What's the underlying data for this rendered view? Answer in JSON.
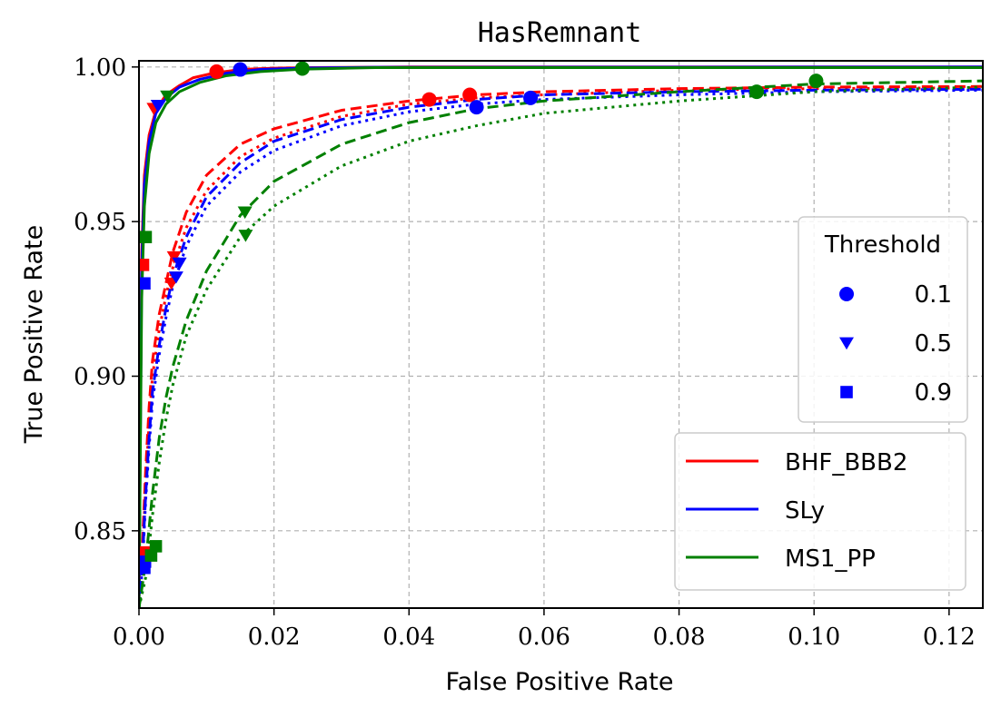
{
  "chart_data": {
    "type": "line",
    "title": "HasRemnant",
    "xlabel": "False Positive Rate",
    "ylabel": "True Positive Rate",
    "xlim": [
      0.0,
      0.125
    ],
    "ylim": [
      0.825,
      1.002
    ],
    "xticks": [
      0.0,
      0.02,
      0.04,
      0.06,
      0.08,
      0.1,
      0.12
    ],
    "xtick_labels": [
      "0.00",
      "0.02",
      "0.04",
      "0.06",
      "0.08",
      "0.10",
      "0.12"
    ],
    "yticks": [
      0.85,
      0.9,
      0.95,
      1.0
    ],
    "ytick_labels": [
      "0.85",
      "0.90",
      "0.95",
      "1.00"
    ],
    "grid": true,
    "grid_style": "dashed",
    "series_legend": {
      "placement": "bottom-right",
      "entries": [
        {
          "name": "BHF_BBB2",
          "color": "#ff0000"
        },
        {
          "name": "SLy",
          "color": "#0000ff"
        },
        {
          "name": "MS1_PP",
          "color": "#008000"
        }
      ]
    },
    "threshold_legend": {
      "title": "Threshold",
      "placement": "center-right",
      "entries": [
        {
          "label": "0.1",
          "marker": "circle"
        },
        {
          "label": "0.5",
          "marker": "triangle-down"
        },
        {
          "label": "0.9",
          "marker": "square"
        }
      ],
      "color": "#0000ff"
    },
    "series": [
      {
        "eos": "BHF_BBB2",
        "color": "#ff0000",
        "dash": "solid",
        "x": [
          0.0,
          0.0004,
          0.0008,
          0.0015,
          0.0025,
          0.004,
          0.006,
          0.008,
          0.011,
          0.015,
          0.02,
          0.025,
          0.04,
          0.125
        ],
        "y": [
          0.825,
          0.94,
          0.965,
          0.978,
          0.986,
          0.991,
          0.994,
          0.9965,
          0.998,
          0.9992,
          0.9996,
          0.9998,
          1.0,
          1.0
        ],
        "markers": [
          {
            "marker": "circle",
            "x": 0.0115,
            "y": 0.9985
          },
          {
            "marker": "triangle-down",
            "x": 0.0022,
            "y": 0.9865
          },
          {
            "marker": "square",
            "x": 0.0006,
            "y": 0.936
          }
        ]
      },
      {
        "eos": "SLy",
        "color": "#0000ff",
        "dash": "solid",
        "x": [
          0.0,
          0.0004,
          0.0008,
          0.0015,
          0.0025,
          0.004,
          0.006,
          0.009,
          0.013,
          0.018,
          0.025,
          0.035,
          0.125
        ],
        "y": [
          0.825,
          0.935,
          0.962,
          0.976,
          0.985,
          0.99,
          0.9935,
          0.996,
          0.998,
          0.9992,
          0.9997,
          0.9999,
          1.0
        ],
        "markers": [
          {
            "marker": "circle",
            "x": 0.015,
            "y": 0.9992
          },
          {
            "marker": "triangle-down",
            "x": 0.0028,
            "y": 0.9875
          },
          {
            "marker": "square",
            "x": 0.0008,
            "y": 0.93
          }
        ]
      },
      {
        "eos": "MS1_PP",
        "color": "#008000",
        "dash": "solid",
        "x": [
          0.0,
          0.0004,
          0.0008,
          0.0015,
          0.0025,
          0.004,
          0.006,
          0.009,
          0.013,
          0.018,
          0.024,
          0.035,
          0.125
        ],
        "y": [
          0.825,
          0.925,
          0.955,
          0.972,
          0.982,
          0.988,
          0.992,
          0.995,
          0.9972,
          0.9985,
          0.9993,
          0.9998,
          0.9998
        ],
        "markers": [
          {
            "marker": "circle",
            "x": 0.0242,
            "y": 0.9995
          },
          {
            "marker": "triangle-down",
            "x": 0.0042,
            "y": 0.9905
          },
          {
            "marker": "square",
            "x": 0.001,
            "y": 0.945
          }
        ]
      },
      {
        "eos": "BHF_BBB2",
        "color": "#ff0000",
        "dash": "dashed",
        "x": [
          0.0,
          0.0005,
          0.001,
          0.0015,
          0.002,
          0.003,
          0.004,
          0.005,
          0.007,
          0.01,
          0.015,
          0.02,
          0.03,
          0.04,
          0.05,
          0.06,
          0.08,
          0.1,
          0.125
        ],
        "y": [
          0.825,
          0.845,
          0.87,
          0.89,
          0.905,
          0.92,
          0.93,
          0.94,
          0.953,
          0.965,
          0.975,
          0.98,
          0.986,
          0.989,
          0.991,
          0.992,
          0.993,
          0.9935,
          0.9937
        ],
        "markers": [
          {
            "marker": "circle",
            "x": 0.049,
            "y": 0.991
          },
          {
            "marker": "triangle-down",
            "x": 0.0052,
            "y": 0.9385
          },
          {
            "marker": "square",
            "x": 0.0008,
            "y": 0.843
          }
        ]
      },
      {
        "eos": "BHF_BBB2",
        "color": "#ff0000",
        "dash": "dotted",
        "x": [
          0.0,
          0.0005,
          0.001,
          0.0015,
          0.002,
          0.003,
          0.004,
          0.005,
          0.007,
          0.01,
          0.015,
          0.02,
          0.03,
          0.04,
          0.05,
          0.06,
          0.08,
          0.1,
          0.125
        ],
        "y": [
          0.825,
          0.84,
          0.865,
          0.885,
          0.9,
          0.915,
          0.926,
          0.935,
          0.948,
          0.96,
          0.971,
          0.977,
          0.984,
          0.988,
          0.99,
          0.991,
          0.9925,
          0.993,
          0.9933
        ],
        "markers": [
          {
            "marker": "circle",
            "x": 0.043,
            "y": 0.9895
          },
          {
            "marker": "triangle-down",
            "x": 0.0048,
            "y": 0.93
          },
          {
            "marker": "square",
            "x": 0.0007,
            "y": 0.84
          }
        ]
      },
      {
        "eos": "SLy",
        "color": "#0000ff",
        "dash": "dashed",
        "x": [
          0.0,
          0.0005,
          0.001,
          0.0015,
          0.002,
          0.003,
          0.004,
          0.005,
          0.007,
          0.01,
          0.015,
          0.02,
          0.03,
          0.04,
          0.05,
          0.06,
          0.08,
          0.1,
          0.125
        ],
        "y": [
          0.825,
          0.84,
          0.862,
          0.88,
          0.895,
          0.91,
          0.922,
          0.932,
          0.945,
          0.958,
          0.969,
          0.976,
          0.983,
          0.987,
          0.9895,
          0.991,
          0.992,
          0.9925,
          0.9928
        ],
        "markers": [
          {
            "marker": "circle",
            "x": 0.058,
            "y": 0.99
          },
          {
            "marker": "triangle-down",
            "x": 0.006,
            "y": 0.9365
          },
          {
            "marker": "square",
            "x": 0.0009,
            "y": 0.84
          }
        ]
      },
      {
        "eos": "SLy",
        "color": "#0000ff",
        "dash": "dotted",
        "x": [
          0.0,
          0.0005,
          0.001,
          0.0015,
          0.002,
          0.003,
          0.004,
          0.005,
          0.007,
          0.01,
          0.015,
          0.02,
          0.03,
          0.04,
          0.05,
          0.06,
          0.08,
          0.1,
          0.125
        ],
        "y": [
          0.825,
          0.838,
          0.86,
          0.877,
          0.892,
          0.907,
          0.919,
          0.929,
          0.942,
          0.955,
          0.966,
          0.973,
          0.981,
          0.9855,
          0.988,
          0.9895,
          0.991,
          0.992,
          0.9925
        ],
        "markers": [
          {
            "marker": "circle",
            "x": 0.05,
            "y": 0.987
          },
          {
            "marker": "triangle-down",
            "x": 0.0055,
            "y": 0.932
          },
          {
            "marker": "square",
            "x": 0.0008,
            "y": 0.838
          }
        ]
      },
      {
        "eos": "MS1_PP",
        "color": "#008000",
        "dash": "dashed",
        "x": [
          0.0,
          0.001,
          0.002,
          0.003,
          0.004,
          0.005,
          0.007,
          0.01,
          0.015,
          0.02,
          0.03,
          0.04,
          0.05,
          0.06,
          0.08,
          0.1,
          0.125
        ],
        "y": [
          0.825,
          0.84,
          0.862,
          0.88,
          0.893,
          0.903,
          0.918,
          0.934,
          0.952,
          0.963,
          0.975,
          0.982,
          0.9865,
          0.989,
          0.992,
          0.9945,
          0.9955
        ],
        "markers": [
          {
            "marker": "circle",
            "x": 0.1003,
            "y": 0.9955
          },
          {
            "marker": "triangle-down",
            "x": 0.0157,
            "y": 0.953
          },
          {
            "marker": "square",
            "x": 0.0025,
            "y": 0.845
          }
        ]
      },
      {
        "eos": "MS1_PP",
        "color": "#008000",
        "dash": "dotted",
        "x": [
          0.0,
          0.001,
          0.002,
          0.003,
          0.004,
          0.005,
          0.007,
          0.01,
          0.015,
          0.02,
          0.03,
          0.04,
          0.05,
          0.06,
          0.08,
          0.1,
          0.125
        ],
        "y": [
          0.825,
          0.835,
          0.855,
          0.872,
          0.886,
          0.897,
          0.913,
          0.928,
          0.945,
          0.955,
          0.968,
          0.976,
          0.981,
          0.985,
          0.989,
          0.992,
          0.9935
        ],
        "markers": [
          {
            "marker": "circle",
            "x": 0.0915,
            "y": 0.992
          },
          {
            "marker": "triangle-down",
            "x": 0.0158,
            "y": 0.9455
          },
          {
            "marker": "square",
            "x": 0.0018,
            "y": 0.842
          }
        ]
      }
    ]
  }
}
